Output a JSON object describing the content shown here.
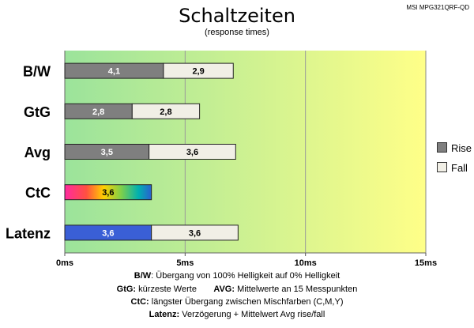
{
  "header": {
    "title": "Schaltzeiten",
    "subtitle": "(response times)",
    "model": "MSI MPG321QRF-QD"
  },
  "chart_data": {
    "type": "bar",
    "orientation": "horizontal",
    "stacked": true,
    "categories": [
      "B/W",
      "GtG",
      "Avg",
      "CtC",
      "Latenz"
    ],
    "series": [
      {
        "name": "Rise",
        "values": [
          4.1,
          2.8,
          3.5,
          null,
          null
        ]
      },
      {
        "name": "Fall",
        "values": [
          2.9,
          2.8,
          3.6,
          null,
          3.6
        ]
      }
    ],
    "single_bars": {
      "CtC": 3.6,
      "Latenz": 3.6
    },
    "value_labels": {
      "B/W": [
        "4,1",
        "2,9"
      ],
      "GtG": [
        "2,8",
        "2,8"
      ],
      "Avg": [
        "3,5",
        "3,6"
      ],
      "CtC": [
        "3,6"
      ],
      "Latenz": [
        "3,6",
        "3,6"
      ]
    },
    "x_ticks": [
      "0ms",
      "5ms",
      "10ms",
      "15ms"
    ],
    "xlim": [
      0,
      15
    ],
    "colors": {
      "rise": "#7f7f7f",
      "fall": "#f1efe6",
      "latenz": "#3a5fd6",
      "background_from": "#9be39b",
      "background_to": "#ffff88"
    },
    "legend": {
      "position": "right",
      "items": [
        "Rise",
        "Fall"
      ]
    }
  },
  "notes": [
    {
      "key": "B/W",
      "text": ":  Übergang von 100% Helligkeit auf 0% Helligkeit"
    },
    {
      "key": "GtG:",
      "text": " kürzeste  Werte",
      "key2": "AVG:",
      "text2": " Mittelwerte  an 15 Messpunkten"
    },
    {
      "key": "CtC:",
      "text": " längster Übergang  zwischen Mischfarben (C,M,Y)"
    },
    {
      "key": "Latenz:",
      "text": " Verzögerung  + Mittelwert Avg rise/fall"
    }
  ]
}
